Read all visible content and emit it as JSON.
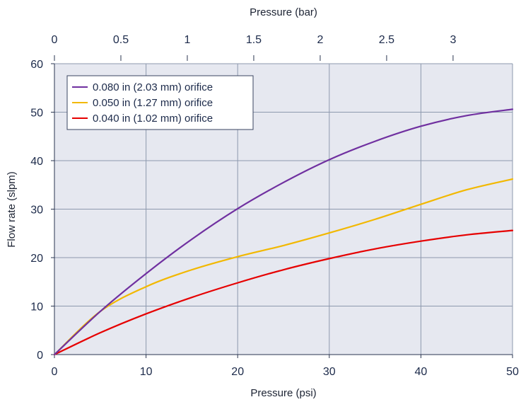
{
  "chart_data": {
    "type": "line",
    "xlabel": "Pressure (psi)",
    "ylabel": "Flow rate (slpm)",
    "x2label": "Pressure (bar)",
    "xlim": [
      0,
      50
    ],
    "ylim": [
      0,
      60
    ],
    "x2lim_bar": [
      0,
      3.4474
    ],
    "x_ticks": [
      0,
      10,
      20,
      30,
      40,
      50
    ],
    "x_tick_labels": [
      "0",
      "10",
      "20",
      "30",
      "40",
      "50"
    ],
    "y_ticks": [
      0,
      10,
      20,
      30,
      40,
      50,
      60
    ],
    "y_tick_labels": [
      "0",
      "10",
      "20",
      "30",
      "40",
      "50",
      "60"
    ],
    "x2_ticks": [
      0,
      0.5,
      1,
      1.5,
      2,
      2.5,
      3
    ],
    "x2_tick_labels": [
      "0",
      "0.5",
      "1",
      "1.5",
      "2",
      "2.5",
      "3"
    ],
    "grid": true,
    "legend_position": "top-left",
    "background_color": "#e6e8f0",
    "grid_color": "#8d99ae",
    "series": [
      {
        "name": "0.080 in (2.03 mm) orifice",
        "color": "#7030a0",
        "x": [
          0,
          5,
          10,
          15,
          20,
          25,
          30,
          35,
          40,
          45,
          50
        ],
        "y": [
          0,
          8.9,
          16.7,
          23.8,
          30.1,
          35.5,
          40.2,
          44.0,
          47.1,
          49.3,
          50.6
        ]
      },
      {
        "name": "0.050 in (1.27 mm) orifice",
        "color": "#f2b800",
        "x": [
          0,
          5,
          10,
          15,
          20,
          25,
          30,
          35,
          40,
          45,
          50
        ],
        "y": [
          0,
          8.9,
          14.0,
          17.5,
          20.2,
          22.5,
          25.1,
          27.9,
          31.0,
          34.0,
          36.2
        ]
      },
      {
        "name": "0.040 in (1.02 mm) orifice",
        "color": "#e60000",
        "x": [
          0,
          5,
          10,
          15,
          20,
          25,
          30,
          35,
          40,
          45,
          50
        ],
        "y": [
          0,
          4.5,
          8.4,
          11.8,
          14.8,
          17.5,
          19.8,
          21.8,
          23.4,
          24.7,
          25.6
        ]
      }
    ]
  }
}
